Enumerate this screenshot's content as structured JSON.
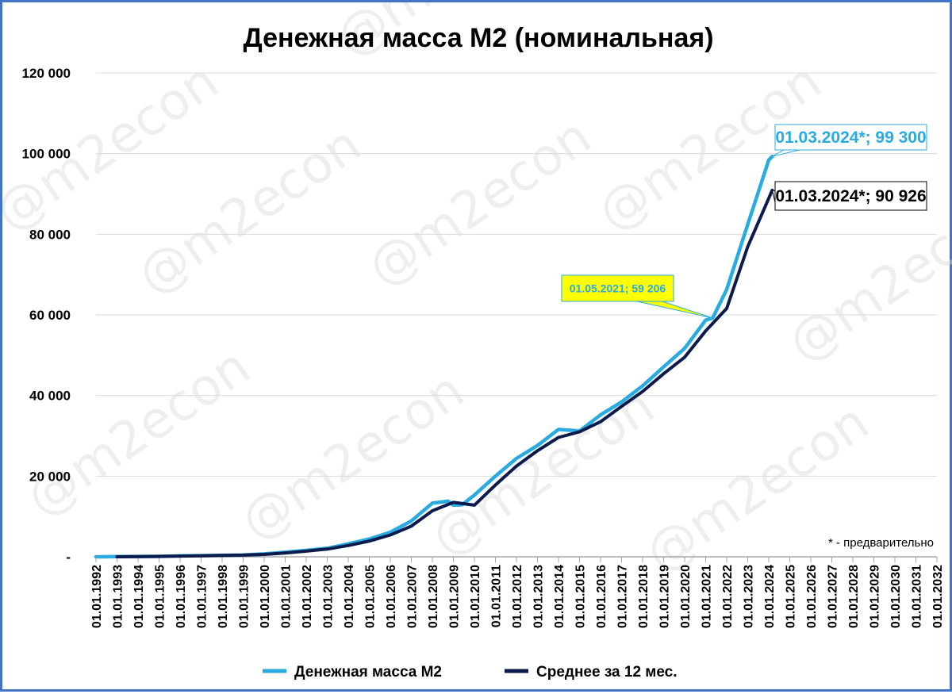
{
  "watermark": "@m2econ",
  "note": "* - предварительно",
  "colors": {
    "m2": "#29abe2",
    "avg": "#0d1b4c",
    "highlight": "#ffff00",
    "frame": "#4472c4",
    "grid": "#d9d9d9"
  },
  "chart_data": {
    "type": "line",
    "title": "Денежная масса М2 (номинальная)",
    "xlabel": "",
    "ylabel": "",
    "ylim": [
      0,
      120000
    ],
    "y_ticks": [
      0,
      20000,
      40000,
      60000,
      80000,
      100000,
      120000
    ],
    "y_tick_labels": [
      "-",
      "20 000",
      "40 000",
      "60 000",
      "80 000",
      "100 000",
      "120 000"
    ],
    "x_range": [
      1992,
      2032
    ],
    "x_tick_labels": [
      "01.01.1992",
      "01.01.1993",
      "01.01.1994",
      "01.01.1995",
      "01.01.1996",
      "01.01.1997",
      "01.01.1998",
      "01.01.1999",
      "01.01.2000",
      "01.01.2001",
      "01.01.2002",
      "01.01.2003",
      "01.01.2004",
      "01.01.2005",
      "01.01.2006",
      "01.01.2007",
      "01.01.2008",
      "01.01.2009",
      "01.01.2010",
      "01.01.2011",
      "01.01.2012",
      "01.01.2013",
      "01.01.2014",
      "01.01.2015",
      "01.01.2016",
      "01.01.2017",
      "01.01.2018",
      "01.01.2019",
      "01.01.2020",
      "01.01.2021",
      "01.01.2022",
      "01.01.2023",
      "01.01.2024",
      "01.01.2025",
      "01.01.2026",
      "01.01.2027",
      "01.01.2028",
      "01.01.2029",
      "01.01.2030",
      "01.01.2031",
      "01.01.2032"
    ],
    "legend_position": "bottom",
    "grid": true,
    "series": [
      {
        "name": "Денежная масса М2",
        "color": "#29abe2",
        "x": [
          "01.01.1992",
          "01.01.1993",
          "01.01.1994",
          "01.01.1995",
          "01.01.1996",
          "01.01.1997",
          "01.01.1998",
          "01.01.1999",
          "01.01.2000",
          "01.01.2001",
          "01.01.2002",
          "01.01.2003",
          "01.01.2004",
          "01.01.2005",
          "01.01.2006",
          "01.01.2007",
          "01.01.2008",
          "01.10.2008",
          "01.01.2009",
          "01.06.2009",
          "01.01.2010",
          "01.01.2011",
          "01.01.2012",
          "01.01.2013",
          "01.01.2014",
          "01.01.2015",
          "01.01.2016",
          "01.01.2017",
          "01.01.2018",
          "01.01.2019",
          "01.01.2020",
          "01.01.2021",
          "01.05.2021",
          "01.01.2022",
          "01.01.2023",
          "01.01.2024",
          "01.03.2024"
        ],
        "values": [
          0,
          30,
          80,
          100,
          220,
          300,
          380,
          450,
          700,
          1150,
          1600,
          2100,
          3200,
          4400,
          6100,
          8900,
          13300,
          13800,
          12800,
          12900,
          15300,
          20000,
          24400,
          27600,
          31600,
          31200,
          35200,
          38400,
          42400,
          47100,
          51700,
          58700,
          59206,
          66300,
          82400,
          98400,
          99300
        ]
      },
      {
        "name": "Среднее за 12 мес.",
        "color": "#0d1b4c",
        "x": [
          "01.01.1993",
          "01.01.1994",
          "01.01.1995",
          "01.01.1996",
          "01.01.1997",
          "01.01.1998",
          "01.01.1999",
          "01.01.2000",
          "01.01.2001",
          "01.01.2002",
          "01.01.2003",
          "01.01.2004",
          "01.01.2005",
          "01.01.2006",
          "01.01.2007",
          "01.01.2008",
          "01.01.2009",
          "01.01.2010",
          "01.01.2011",
          "01.01.2012",
          "01.01.2013",
          "01.01.2014",
          "01.01.2015",
          "01.01.2016",
          "01.01.2017",
          "01.01.2018",
          "01.01.2019",
          "01.01.2020",
          "01.01.2021",
          "01.01.2022",
          "01.01.2023",
          "01.01.2024",
          "01.03.2024"
        ],
        "values": [
          0,
          50,
          90,
          180,
          260,
          350,
          420,
          600,
          950,
          1400,
          1900,
          2800,
          3900,
          5400,
          7600,
          11400,
          13500,
          12800,
          17800,
          22500,
          26300,
          29600,
          31000,
          33500,
          37300,
          41000,
          45400,
          49500,
          56000,
          61600,
          76900,
          88900,
          90926
        ]
      }
    ],
    "annotations": [
      {
        "label": "01.03.2024*;  99 300",
        "x": "01.03.2024",
        "y": 99300,
        "series": "Денежная масса М2"
      },
      {
        "label": "01.03.2024*;  90 926",
        "x": "01.03.2024",
        "y": 90926,
        "series": "Среднее за 12 мес."
      },
      {
        "label": "01.05.2021;  59 206",
        "x": "01.05.2021",
        "y": 59206,
        "series": "Денежная масса М2"
      }
    ]
  }
}
